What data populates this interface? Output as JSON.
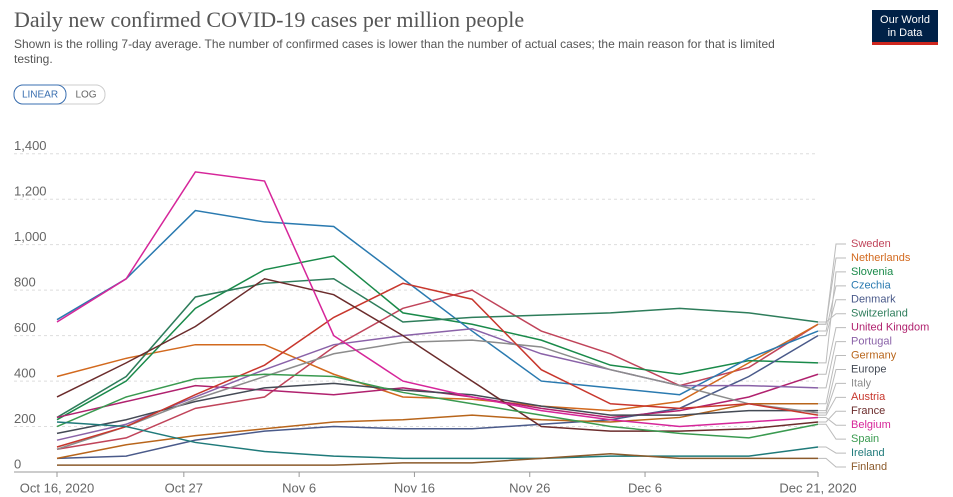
{
  "header": {
    "title": "Daily new confirmed COVID-19 cases per million people",
    "subtitle": "Shown is the rolling 7-day average. The number of confirmed cases is lower than the number of actual cases; the main reason for that is limited testing.",
    "logo": [
      "Our World",
      "in Data"
    ],
    "buttons": [
      "LINEAR",
      "LOG"
    ]
  },
  "chart_data": {
    "type": "line",
    "x": [
      "2020-10-16",
      "2020-10-22",
      "2020-10-28",
      "2020-11-03",
      "2020-11-09",
      "2020-11-15",
      "2020-11-21",
      "2020-11-27",
      "2020-12-03",
      "2020-12-09",
      "2020-12-15",
      "2020-12-21"
    ],
    "xlim": [
      "2020-10-16",
      "2020-12-21"
    ],
    "xticks": [
      {
        "value": "2020-10-16",
        "label": "Oct 16, 2020"
      },
      {
        "value": "2020-10-27",
        "label": "Oct 27"
      },
      {
        "value": "2020-11-06",
        "label": "Nov 6"
      },
      {
        "value": "2020-11-16",
        "label": "Nov 16"
      },
      {
        "value": "2020-11-26",
        "label": "Nov 26"
      },
      {
        "value": "2020-12-06",
        "label": "Dec 6"
      },
      {
        "value": "2020-12-21",
        "label": "Dec 21, 2020"
      }
    ],
    "ylim": [
      0,
      1500
    ],
    "yticks": [
      0,
      200,
      400,
      600,
      800,
      {
        "value": 1000,
        "label": "1,000"
      },
      {
        "value": 1200,
        "label": "1,200"
      },
      {
        "value": 1400,
        "label": "1,400"
      }
    ],
    "grid": true,
    "series": [
      {
        "name": "Sweden",
        "color": "#c0445a",
        "values": [
          100,
          150,
          280,
          330,
          550,
          720,
          800,
          620,
          520,
          380,
          460,
          650
        ]
      },
      {
        "name": "Netherlands",
        "color": "#d2691e",
        "values": [
          420,
          500,
          560,
          560,
          430,
          330,
          320,
          290,
          270,
          310,
          480,
          650
        ]
      },
      {
        "name": "Slovenia",
        "color": "#1a8a4a",
        "values": [
          230,
          400,
          720,
          890,
          950,
          700,
          650,
          580,
          470,
          430,
          490,
          480
        ]
      },
      {
        "name": "Czechia",
        "color": "#2a7ab0",
        "values": [
          670,
          850,
          1150,
          1100,
          1080,
          850,
          620,
          400,
          370,
          340,
          500,
          620
        ]
      },
      {
        "name": "Denmark",
        "color": "#4a5a8a",
        "values": [
          60,
          70,
          140,
          180,
          200,
          190,
          190,
          210,
          230,
          280,
          420,
          600
        ]
      },
      {
        "name": "Switzerland",
        "color": "#2e7d5b",
        "values": [
          240,
          420,
          770,
          830,
          850,
          660,
          680,
          690,
          700,
          720,
          700,
          660
        ]
      },
      {
        "name": "United Kingdom",
        "color": "#b0216e",
        "values": [
          240,
          310,
          380,
          360,
          340,
          370,
          330,
          280,
          240,
          270,
          330,
          430
        ]
      },
      {
        "name": "Portugal",
        "color": "#8a62a8",
        "values": [
          140,
          210,
          330,
          450,
          560,
          600,
          630,
          520,
          450,
          380,
          380,
          370
        ]
      },
      {
        "name": "Germany",
        "color": "#b8651b",
        "values": [
          60,
          120,
          160,
          190,
          220,
          230,
          250,
          230,
          220,
          240,
          300,
          300
        ]
      },
      {
        "name": "Europe",
        "color": "#444a55",
        "values": [
          170,
          230,
          310,
          370,
          390,
          360,
          340,
          290,
          250,
          250,
          270,
          270
        ]
      },
      {
        "name": "Italy",
        "color": "#8c8c8c",
        "values": [
          100,
          200,
          320,
          420,
          520,
          570,
          580,
          550,
          450,
          380,
          300,
          260
        ]
      },
      {
        "name": "Austria",
        "color": "#c8372d",
        "values": [
          110,
          200,
          340,
          470,
          680,
          830,
          760,
          450,
          300,
          280,
          300,
          250
        ]
      },
      {
        "name": "France",
        "color": "#6b2c2c",
        "values": [
          330,
          480,
          640,
          850,
          780,
          600,
          400,
          200,
          180,
          180,
          190,
          220
        ]
      },
      {
        "name": "Belgium",
        "color": "#d6269a",
        "values": [
          660,
          850,
          1320,
          1280,
          600,
          400,
          330,
          270,
          230,
          200,
          220,
          240
        ]
      },
      {
        "name": "Spain",
        "color": "#3a9a50",
        "values": [
          200,
          330,
          410,
          430,
          420,
          350,
          300,
          250,
          200,
          170,
          150,
          210
        ]
      },
      {
        "name": "Ireland",
        "color": "#1f7a7a",
        "values": [
          220,
          200,
          130,
          90,
          70,
          60,
          60,
          60,
          70,
          70,
          70,
          110
        ]
      },
      {
        "name": "Finland",
        "color": "#8b5a2b",
        "values": [
          30,
          30,
          30,
          30,
          30,
          40,
          40,
          60,
          80,
          60,
          60,
          60
        ]
      }
    ]
  }
}
